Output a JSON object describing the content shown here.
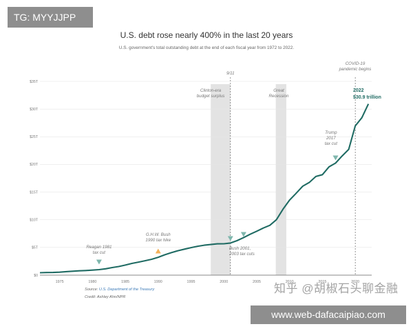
{
  "watermarks": {
    "top_tag": "TG: MYYJJPP",
    "bottom_tag": "www.web-dafacaipiao.com",
    "overlay": "知乎 @胡椒石头聊金融"
  },
  "header": {
    "title": "U.S. debt rose nearly 400% in the last 20 years",
    "subtitle": "U.S. government's total outstanding debt at the end of each fiscal year from 1972 to 2022."
  },
  "footer": {
    "source_prefix": "Source: ",
    "source_link": "U.S. Department of the Treasury",
    "credit": "Credit: Ashley Ahn/NPR"
  },
  "colors": {
    "line": "#1f6b63",
    "marker_teal": "#7fb7ad",
    "marker_orange": "#f3b25a",
    "shade": "#e3e3e3",
    "highlight_text": "#1f6b63"
  },
  "chart_data": {
    "type": "line",
    "title": "U.S. debt rose nearly 400% in the last 20 years",
    "xlabel": "",
    "ylabel": "",
    "xlim": [
      1972,
      2022.5
    ],
    "ylim": [
      0,
      35
    ],
    "x_ticks": [
      1975,
      1980,
      1985,
      1990,
      1995,
      2000,
      2005,
      2010,
      2015,
      2020
    ],
    "y_ticks": [
      {
        "value": 0,
        "label": "$0"
      },
      {
        "value": 5,
        "label": "$5T"
      },
      {
        "value": 10,
        "label": "$10T"
      },
      {
        "value": 15,
        "label": "$15T"
      },
      {
        "value": 20,
        "label": "$20T"
      },
      {
        "value": 25,
        "label": "$25T"
      },
      {
        "value": 30,
        "label": "$30T"
      },
      {
        "value": 35,
        "label": "$35T"
      }
    ],
    "grid": "horizontal",
    "series": [
      {
        "x": [
          1972,
          1973,
          1974,
          1975,
          1976,
          1977,
          1978,
          1979,
          1980,
          1981,
          1982,
          1983,
          1984,
          1985,
          1986,
          1987,
          1988,
          1989,
          1990,
          1991,
          1992,
          1993,
          1994,
          1995,
          1996,
          1997,
          1998,
          1999,
          2000,
          2001,
          2002,
          2003,
          2004,
          2005,
          2006,
          2007,
          2008,
          2009,
          2010,
          2011,
          2012,
          2013,
          2014,
          2015,
          2016,
          2017,
          2018,
          2019,
          2020,
          2021,
          2022
        ],
        "y": [
          0.43,
          0.47,
          0.48,
          0.54,
          0.63,
          0.71,
          0.78,
          0.83,
          0.91,
          1.0,
          1.14,
          1.37,
          1.56,
          1.82,
          2.12,
          2.35,
          2.6,
          2.86,
          3.23,
          3.67,
          4.06,
          4.41,
          4.69,
          4.97,
          5.22,
          5.41,
          5.53,
          5.66,
          5.67,
          5.81,
          6.23,
          6.78,
          7.38,
          7.93,
          8.51,
          9.01,
          10.02,
          11.91,
          13.56,
          14.79,
          16.07,
          16.74,
          17.82,
          18.15,
          19.57,
          20.24,
          21.52,
          22.72,
          26.95,
          28.43,
          30.93
        ]
      }
    ],
    "shaded_periods": [
      {
        "start": 1998,
        "end": 2001,
        "label": "Clinton-era budget surplus"
      },
      {
        "start": 2007.9,
        "end": 2009.5,
        "label": "Great Recession"
      }
    ],
    "vertical_lines": [
      {
        "x": 2001,
        "label": "9/11"
      },
      {
        "x": 2020,
        "label": "COVID-19 pandemic begins"
      }
    ],
    "annotations": [
      {
        "x": 1981,
        "marker": "down-triangle",
        "color": "teal",
        "label": "Reagan 1981 tax cut"
      },
      {
        "x": 1990,
        "marker": "up-triangle",
        "color": "orange",
        "label": "G.H.W. Bush 1990 tax hike"
      },
      {
        "x": 2001,
        "marker": "down-triangle",
        "color": "teal",
        "label": "Bush 2001, 2003 tax cuts"
      },
      {
        "x": 2003,
        "marker": "down-triangle",
        "color": "teal",
        "label": ""
      },
      {
        "x": 2017,
        "marker": "down-triangle",
        "color": "teal",
        "label": "Trump 2017 tax cut"
      }
    ],
    "highlight": {
      "x": 2022,
      "line1": "2022",
      "line2": "$30.9 trillion"
    }
  }
}
